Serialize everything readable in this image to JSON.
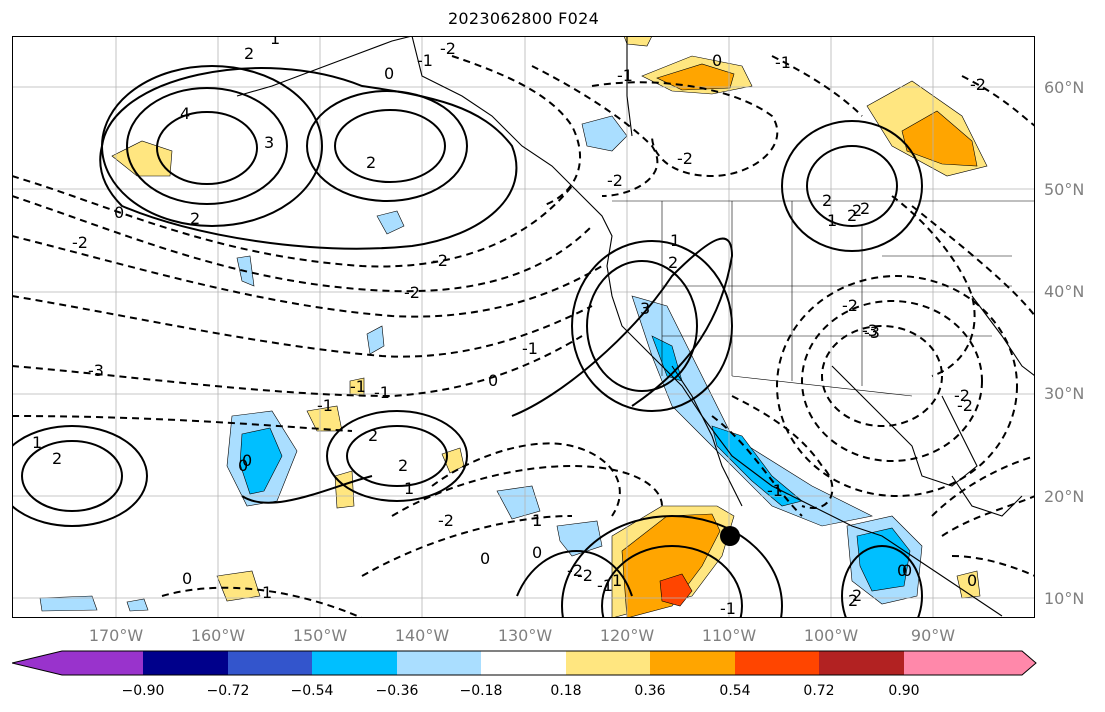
{
  "title": "2023062800 F024",
  "map": {
    "lat_labels": [
      "60°N",
      "50°N",
      "40°N",
      "30°N",
      "20°N",
      "10°N"
    ],
    "lon_labels": [
      "170°W",
      "160°W",
      "150°W",
      "140°W",
      "130°W",
      "120°W",
      "110°W",
      "100°W",
      "90°W"
    ],
    "contour_labels": [
      "2",
      "1",
      "0",
      "-2",
      "-1",
      "4",
      "3",
      "2",
      "2",
      "0",
      "-2",
      "-2",
      "-1",
      "0",
      "-1",
      "-2",
      "-2",
      "-2",
      "2",
      "1",
      "2",
      "3",
      "-3",
      "-3",
      "0",
      "-1",
      "1",
      "2",
      "-2",
      "-1",
      "-2",
      "0",
      "0",
      "2",
      "2",
      "0",
      "1",
      "1",
      "1",
      "-2",
      "2",
      "1",
      "0",
      "-2",
      "-2",
      "2",
      "-1",
      "-3",
      "-1",
      "2",
      "-2",
      "-1",
      "0",
      "0",
      "-1",
      "1",
      "2",
      "-1",
      "0",
      "1",
      "-2",
      "2",
      "0"
    ],
    "marker": "point-marker"
  },
  "colorbar": {
    "colors": [
      "#9933cc",
      "#00008b",
      "#3355cc",
      "#00bfff",
      "#aadeff",
      "#ffffff",
      "#ffe680",
      "#ffa500",
      "#ff4500",
      "#b22222",
      "#ff88aa"
    ],
    "tick_labels": [
      "−0.90",
      "−0.72",
      "−0.54",
      "−0.36",
      "−0.18",
      "0.18",
      "0.36",
      "0.54",
      "0.72",
      "0.90"
    ]
  }
}
